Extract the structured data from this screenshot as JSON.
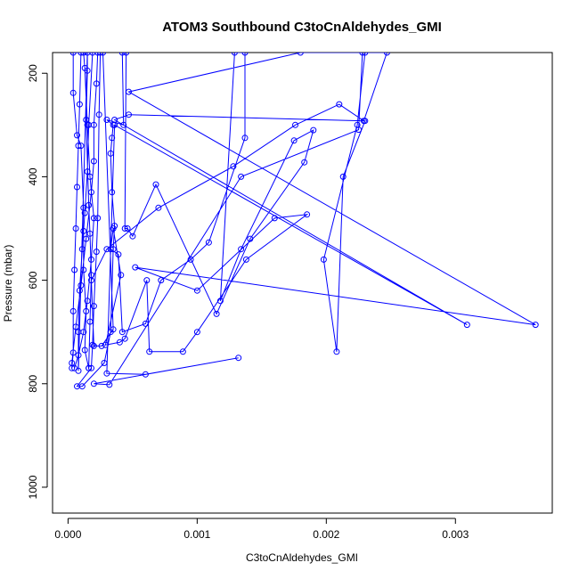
{
  "chart_data": {
    "type": "line",
    "title": "ATOM3 Southbound C3toCnAldehydes_GMI",
    "xlabel": "C3toCnAldehydes_GMI",
    "ylabel": "Pressure (mbar)",
    "xlim": [
      -0.00012,
      0.00375
    ],
    "ylim": [
      1050,
      160
    ],
    "y_reversed": true,
    "x_ticks": [
      0.0,
      0.001,
      0.002,
      0.003
    ],
    "x_tick_labels": [
      "0.000",
      "0.001",
      "0.002",
      "0.003"
    ],
    "y_ticks": [
      200,
      400,
      600,
      800,
      1000
    ],
    "y_tick_labels": [
      "200",
      "400",
      "600",
      "800",
      "1000"
    ],
    "grid": false,
    "legend": "none",
    "marker": "open-circle",
    "color": "#0000ff",
    "series": [
      {
        "points": [
          [
            5e-05,
            770
          ],
          [
            8e-05,
            745
          ],
          [
            0.00012,
            700
          ],
          [
            0.00015,
            640
          ],
          [
            0.00018,
            560
          ],
          [
            0.0002,
            480
          ],
          [
            0.00017,
            400
          ],
          [
            0.00015,
            300
          ],
          [
            0.00013,
            190
          ],
          [
            0.00012,
            160
          ],
          [
            0.0001,
            160
          ],
          [
            9e-05,
            260
          ],
          [
            8e-05,
            340
          ],
          [
            7e-05,
            420
          ],
          [
            6e-05,
            500
          ],
          [
            5e-05,
            580
          ],
          [
            4e-05,
            660
          ],
          [
            4e-05,
            740
          ],
          [
            3e-05,
            770
          ],
          [
            3e-05,
            760
          ],
          [
            6e-05,
            690
          ],
          [
            0.0001,
            610
          ],
          [
            0.00014,
            520
          ],
          [
            0.00018,
            430
          ],
          [
            0.0002,
            370
          ],
          [
            0.0002,
            300
          ],
          [
            0.00022,
            220
          ],
          [
            0.00023,
            160
          ],
          [
            4e-05,
            160
          ],
          [
            4e-05,
            238
          ],
          [
            7e-05,
            320
          ],
          [
            0.0001,
            340
          ],
          [
            0.00012,
            460
          ],
          [
            0.00011,
            540
          ],
          [
            9e-05,
            620
          ],
          [
            8e-05,
            700
          ],
          [
            8e-05,
            775
          ],
          [
            0.00015,
            160
          ],
          [
            0.00015,
            195
          ],
          [
            0.00014,
            290
          ],
          [
            0.00016,
            455
          ],
          [
            0.00017,
            510
          ],
          [
            0.00018,
            590
          ],
          [
            0.00017,
            680
          ],
          [
            0.00016,
            770
          ],
          [
            0.00016,
            770
          ],
          [
            0.00013,
            735
          ],
          [
            0.00014,
            660
          ],
          [
            0.00012,
            580
          ],
          [
            0.00012,
            505
          ],
          [
            0.00013,
            470
          ],
          [
            0.00015,
            390
          ],
          [
            0.00016,
            300
          ],
          [
            0.00019,
            160
          ],
          [
            0.00025,
            160
          ],
          [
            0.00024,
            280
          ],
          [
            0.00023,
            480
          ],
          [
            0.00022,
            545
          ],
          [
            0.0002,
            650
          ],
          [
            0.00019,
            725
          ],
          [
            0.00018,
            770
          ],
          [
            7e-05,
            805
          ],
          [
            0.00011,
            805
          ],
          [
            0.00028,
            760
          ],
          [
            0.00033,
            700
          ],
          [
            0.00035,
            540
          ],
          [
            0.00036,
            495
          ],
          [
            0.00034,
            430
          ],
          [
            0.00033,
            355
          ],
          [
            0.00034,
            325
          ],
          [
            0.00035,
            300
          ],
          [
            0.0003,
            290
          ],
          [
            0.00043,
            300
          ],
          [
            0.00042,
            160
          ],
          [
            0.00045,
            160
          ],
          [
            0.00044,
            500
          ],
          [
            0.00046,
            500
          ],
          [
            0.0005,
            515
          ],
          [
            0.00068,
            415
          ],
          [
            0.00115,
            665
          ],
          [
            0.00141,
            520
          ],
          [
            0.00183,
            372
          ],
          [
            0.0019,
            310
          ],
          [
            0.00175,
            330
          ],
          [
            0.00134,
            540
          ],
          [
            0.00118,
            640
          ],
          [
            0.00129,
            160
          ],
          [
            0.00137,
            160
          ],
          [
            0.00137,
            325
          ],
          [
            0.00109,
            527
          ],
          [
            0.00095,
            560
          ],
          [
            0.00072,
            600
          ],
          [
            0.0006,
            684
          ],
          [
            0.00042,
            700
          ],
          [
            0.00039,
            550
          ],
          [
            0.00033,
            540
          ],
          [
            0.00035,
            500
          ],
          [
            0.00041,
            590
          ],
          [
            0.00029,
            725
          ],
          [
            0.0004,
            720
          ],
          [
            0.00044,
            713
          ],
          [
            0.00061,
            600
          ],
          [
            0.00063,
            738
          ],
          [
            0.00089,
            738
          ],
          [
            0.001,
            700
          ],
          [
            0.00138,
            560
          ],
          [
            0.00185,
            473
          ],
          [
            0.0016,
            480
          ],
          [
            0.001,
            620
          ],
          [
            0.00052,
            575
          ],
          [
            0.00362,
            686
          ],
          [
            0.00047,
            236
          ],
          [
            0.0018,
            160
          ],
          [
            0.00228,
            160
          ],
          [
            0.00225,
            309
          ],
          [
            0.00134,
            400
          ],
          [
            0.00032,
            802
          ],
          [
            0.0002,
            800
          ],
          [
            0.00132,
            750
          ],
          [
            0.0006,
            782
          ],
          [
            0.0003,
            780
          ],
          [
            0.00036,
            300
          ],
          [
            0.00309,
            686
          ],
          [
            0.00036,
            290
          ],
          [
            0.00047,
            280
          ],
          [
            0.0023,
            292
          ],
          [
            0.00213,
            400
          ],
          [
            0.00208,
            738
          ],
          [
            0.00198,
            560
          ],
          [
            0.00224,
            300
          ],
          [
            0.0023,
            160
          ],
          [
            0.00247,
            160
          ],
          [
            0.00229,
            292
          ],
          [
            0.0021,
            260
          ],
          [
            0.00176,
            300
          ],
          [
            0.00128,
            380
          ],
          [
            0.0007,
            460
          ],
          [
            0.0003,
            540
          ],
          [
            0.00018,
            600
          ],
          [
            0.0002,
            727
          ],
          [
            0.00026,
            727
          ],
          [
            0.00035,
            695
          ],
          [
            0.00027,
            160
          ]
        ]
      }
    ]
  }
}
